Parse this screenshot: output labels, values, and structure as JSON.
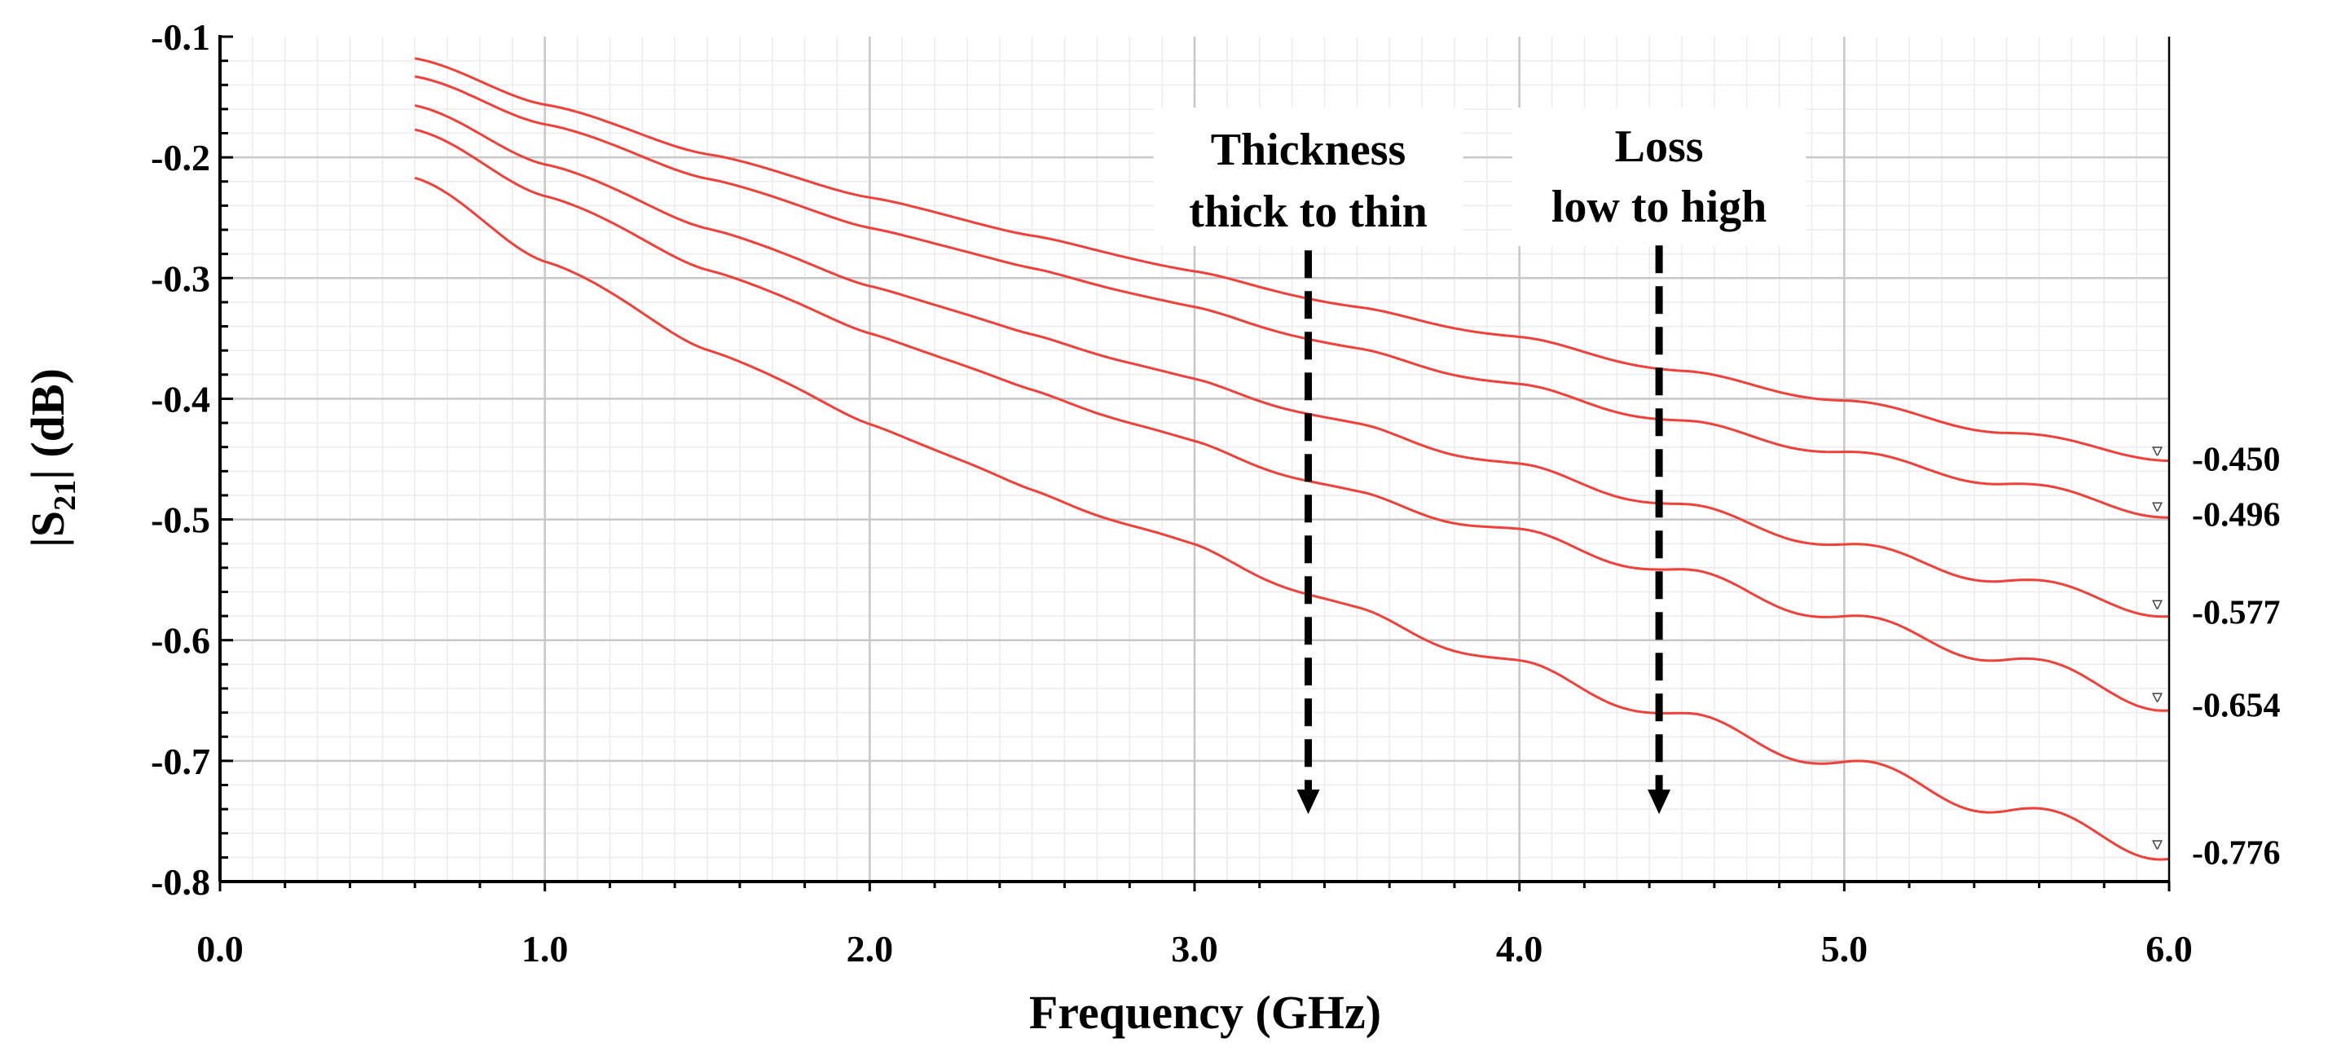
{
  "chart_data": {
    "type": "line",
    "xlabel": "Frequency (GHz)",
    "ylabel_main": "|S",
    "ylabel_sub": "21",
    "ylabel_tail": "| (dB)",
    "xlim": [
      0.0,
      6.0
    ],
    "ylim": [
      -0.8,
      -0.1
    ],
    "xticks": [
      "0.0",
      "1.0",
      "2.0",
      "3.0",
      "4.0",
      "5.0",
      "6.0"
    ],
    "yticks": [
      "-0.1",
      "-0.2",
      "-0.3",
      "-0.4",
      "-0.5",
      "-0.6",
      "-0.7",
      "-0.8"
    ],
    "line_color": "#f0403a",
    "grid": true,
    "x": [
      0.6,
      1.0,
      1.5,
      2.0,
      2.5,
      3.0,
      3.5,
      4.0,
      4.5,
      5.0,
      5.5,
      6.0
    ],
    "series": [
      {
        "name": "curve-1",
        "end_label": "-0.450",
        "values": [
          -0.118,
          -0.156,
          -0.197,
          -0.233,
          -0.265,
          -0.295,
          -0.325,
          -0.35,
          -0.378,
          -0.402,
          -0.428,
          -0.45
        ]
      },
      {
        "name": "curve-2",
        "end_label": "-0.496",
        "values": [
          -0.133,
          -0.172,
          -0.217,
          -0.258,
          -0.292,
          -0.325,
          -0.36,
          -0.39,
          -0.42,
          -0.445,
          -0.47,
          -0.496
        ]
      },
      {
        "name": "curve-3",
        "end_label": "-0.577",
        "values": [
          -0.157,
          -0.205,
          -0.258,
          -0.306,
          -0.347,
          -0.385,
          -0.423,
          -0.457,
          -0.49,
          -0.522,
          -0.55,
          -0.577
        ]
      },
      {
        "name": "curve-4",
        "end_label": "-0.654",
        "values": [
          -0.177,
          -0.231,
          -0.292,
          -0.345,
          -0.393,
          -0.437,
          -0.48,
          -0.512,
          -0.545,
          -0.582,
          -0.615,
          -0.654
        ]
      },
      {
        "name": "curve-5",
        "end_label": "-0.776",
        "values": [
          -0.217,
          -0.285,
          -0.358,
          -0.42,
          -0.476,
          -0.523,
          -0.577,
          -0.622,
          -0.665,
          -0.703,
          -0.74,
          -0.776
        ]
      }
    ],
    "annotations": [
      {
        "name": "thickness",
        "line1": "Thickness",
        "line2": "thick to thin",
        "x": 3.35,
        "y_start": -0.277,
        "y_end": -0.74
      },
      {
        "name": "loss",
        "line1": "Loss",
        "line2": "low to high",
        "x": 4.43,
        "y_start": -0.273,
        "y_end": -0.74
      }
    ],
    "marker_glyph": "ᐊ"
  }
}
